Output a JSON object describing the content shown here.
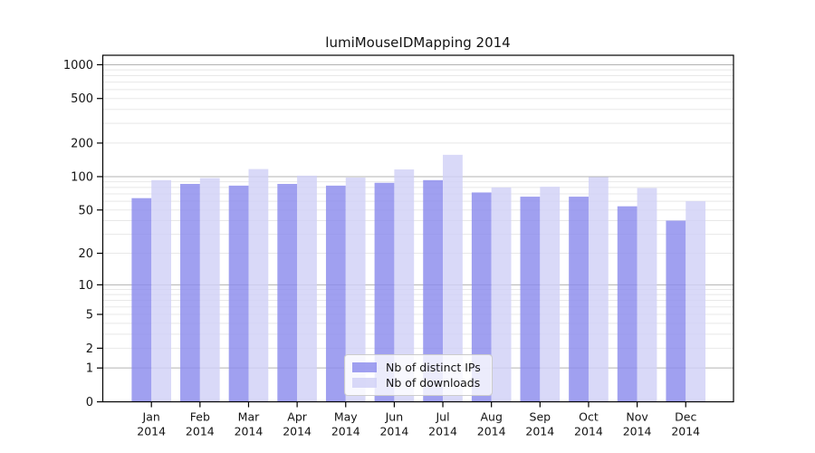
{
  "figure": {
    "title": "lumiMouseIDMapping 2014"
  },
  "legend": {
    "items": [
      {
        "label": "Nb of distinct IPs",
        "series": "ips"
      },
      {
        "label": "Nb of downloads",
        "series": "downloads"
      }
    ]
  },
  "colors": {
    "ips": "#8b8bed",
    "downloads": "#d1d1f6",
    "bar_opacity": 0.82,
    "grid_major": "#b3b3b3",
    "grid_minor": "#e8e8e8",
    "axis": "#000000",
    "text": "#141414",
    "legend_border": "#cccccc"
  },
  "chart_data": {
    "type": "bar",
    "title": "lumiMouseIDMapping 2014",
    "categories": [
      "Jan",
      "Feb",
      "Mar",
      "Apr",
      "May",
      "Jun",
      "Jul",
      "Aug",
      "Sep",
      "Oct",
      "Nov",
      "Dec"
    ],
    "year": "2014",
    "series": [
      {
        "name": "Nb of distinct IPs",
        "values": [
          64,
          86,
          83,
          86,
          83,
          88,
          93,
          72,
          66,
          66,
          54,
          40
        ]
      },
      {
        "name": "Nb of downloads",
        "values": [
          93,
          97,
          117,
          102,
          98,
          116,
          157,
          80,
          81,
          99,
          79,
          60
        ]
      }
    ],
    "yscale": "log1p",
    "yticks": [
      0,
      1,
      2,
      5,
      10,
      20,
      50,
      100,
      200,
      500,
      1000
    ],
    "ylim": [
      0,
      1200
    ],
    "grid": true,
    "legend_position": "lower center"
  }
}
